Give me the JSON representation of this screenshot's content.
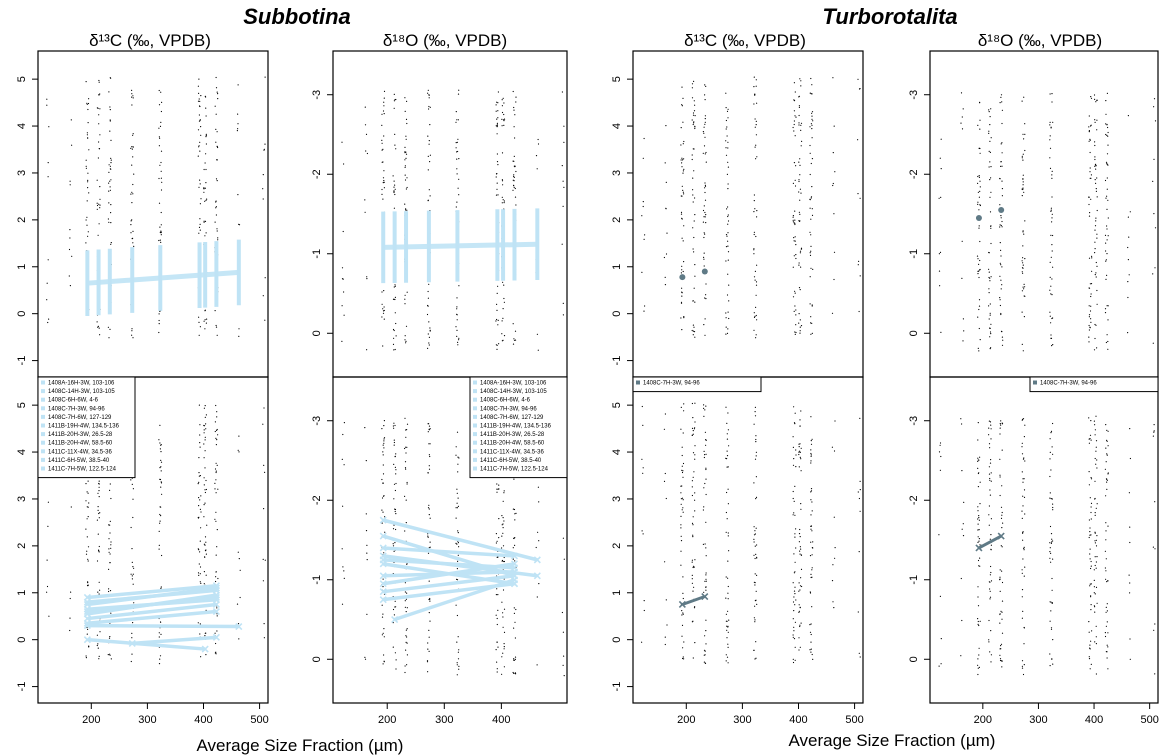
{
  "headers": {
    "genus_left": "Subbotina",
    "genus_right": "Turborotalita",
    "col1": "δ¹³C (‰, VPDB)",
    "col2": "δ¹⁸O (‰, VPDB)",
    "col3": "δ¹³C (‰, VPDB)",
    "col4": "δ¹⁸O (‰, VPDB)",
    "xlabel_left": "Average Size Fraction (µm)",
    "xlabel_right": "Average Size Fraction (µm)"
  },
  "colors": {
    "background_points": "#000000",
    "subbotina_series": "#bfe3f5",
    "turborotalita_series": "#5f7a86"
  },
  "chart_data": [
    {
      "id": "subbotina-d13c",
      "type": "scatter",
      "title": "δ¹³C (‰, VPDB)",
      "xlabel": "Average Size Fraction (µm)",
      "ylabel": "",
      "xlim": [
        105,
        515
      ],
      "ylim": [
        -1.35,
        5.6
      ],
      "x_ticks": [
        200,
        300,
        400,
        500
      ],
      "y_ticks": [
        -1,
        0,
        1,
        2,
        3,
        4,
        5
      ],
      "y_reversed": false,
      "legend_location": "bottom panel, top-left",
      "legend": [
        "1408A-16H-3W, 103-106",
        "1408C-14H-3W, 103-105",
        "1408C-6H-6W, 4-6",
        "1408C-7H-3W, 94-96",
        "1408C-7H-6W, 127-129",
        "1411B-19H-4W, 134.5-136",
        "1411B-20H-3W, 26.5-28",
        "1411B-20H-4W, 58.5-60",
        "1411C-11X-4W, 34.5-36",
        "1411C-6H-5W, 38.5-40",
        "1411C-7H-5W, 122.5-124"
      ],
      "top_panel_fit": {
        "x": [
          193,
          463
        ],
        "y": [
          0.65,
          0.88
        ]
      },
      "series": [
        {
          "name": "1408A-16H-3W, 103-106",
          "x": [
            193,
            463
          ],
          "y": [
            0.3,
            0.28
          ]
        },
        {
          "name": "1408C-14H-3W, 103-105",
          "x": [
            193,
            423
          ],
          "y": [
            0.75,
            1.1
          ]
        },
        {
          "name": "1408C-6H-6W, 4-6",
          "x": [
            193,
            423
          ],
          "y": [
            0.55,
            0.95
          ]
        },
        {
          "name": "1408C-7H-3W, 94-96",
          "x": [
            193,
            423
          ],
          "y": [
            0.8,
            1.05
          ]
        },
        {
          "name": "1408C-7H-6W, 127-129",
          "x": [
            193,
            423
          ],
          "y": [
            0.65,
            0.85
          ]
        },
        {
          "name": "1411B-19H-4W, 134.5-136",
          "x": [
            193,
            423
          ],
          "y": [
            0.45,
            0.75
          ]
        },
        {
          "name": "1411B-20H-3W, 26.5-28",
          "x": [
            193,
            423
          ],
          "y": [
            0.9,
            1.15
          ]
        },
        {
          "name": "1411B-20H-4W, 58.5-60",
          "x": [
            193,
            403
          ],
          "y": [
            0.0,
            -0.2
          ]
        },
        {
          "name": "1411C-11X-4W, 34.5-36",
          "x": [
            193,
            423
          ],
          "y": [
            0.6,
            0.9
          ]
        },
        {
          "name": "1411C-6H-5W, 38.5-40",
          "x": [
            273,
            423
          ],
          "y": [
            -0.08,
            0.05
          ]
        },
        {
          "name": "1411C-7H-5W, 122.5-124",
          "x": [
            193,
            423
          ],
          "y": [
            0.35,
            0.6
          ]
        }
      ]
    },
    {
      "id": "subbotina-d18o",
      "type": "scatter",
      "title": "δ¹⁸O (‰, VPDB)",
      "xlabel": "Average Size Fraction (µm)",
      "ylabel": "",
      "xlim": [
        105,
        515
      ],
      "ylim": [
        0.55,
        -3.55
      ],
      "x_ticks": [
        200,
        300,
        400
      ],
      "y_ticks": [
        -3,
        -2,
        -1,
        0
      ],
      "y_reversed": true,
      "legend_location": "bottom panel, top-right",
      "legend": [
        "1408A-16H-3W, 103-106",
        "1408C-14H-3W, 103-105",
        "1408C-6H-6W, 4-6",
        "1408C-7H-3W, 94-96",
        "1408C-7H-6W, 127-129",
        "1411B-19H-4W, 134.5-136",
        "1411B-20H-3W, 26.5-28",
        "1411B-20H-4W, 58.5-60",
        "1411C-11X-4W, 34.5-36",
        "1411C-6H-5W, 38.5-40",
        "1411C-7H-5W, 122.5-124"
      ],
      "top_panel_fit": {
        "x": [
          193,
          463
        ],
        "y": [
          -1.08,
          -1.12
        ]
      },
      "series": [
        {
          "name": "1408A-16H-3W, 103-106",
          "x": [
            193,
            463
          ],
          "y": [
            -1.75,
            -1.25
          ]
        },
        {
          "name": "1408C-14H-3W, 103-105",
          "x": [
            193,
            423
          ],
          "y": [
            -1.55,
            -1.05
          ]
        },
        {
          "name": "1408C-6H-6W, 4-6",
          "x": [
            193,
            423
          ],
          "y": [
            -1.2,
            -0.95
          ]
        },
        {
          "name": "1408C-7H-3W, 94-96",
          "x": [
            193,
            423
          ],
          "y": [
            -1.05,
            -1.1
          ]
        },
        {
          "name": "1408C-7H-6W, 127-129",
          "x": [
            193,
            423
          ],
          "y": [
            -0.85,
            -1.05
          ]
        },
        {
          "name": "1411B-19H-4W, 134.5-136",
          "x": [
            213,
            423
          ],
          "y": [
            -0.5,
            -1.0
          ]
        },
        {
          "name": "1411B-20H-3W, 26.5-28",
          "x": [
            193,
            423
          ],
          "y": [
            -1.25,
            -1.15
          ]
        },
        {
          "name": "1411B-20H-4W, 58.5-60",
          "x": [
            193,
            423
          ],
          "y": [
            -1.4,
            -1.3
          ]
        },
        {
          "name": "1411C-11X-4W, 34.5-36",
          "x": [
            193,
            423
          ],
          "y": [
            -0.95,
            -1.2
          ]
        },
        {
          "name": "1411C-6H-5W, 38.5-40",
          "x": [
            193,
            423
          ],
          "y": [
            -0.75,
            -0.95
          ]
        },
        {
          "name": "1411C-7H-5W, 122.5-124",
          "x": [
            193,
            463
          ],
          "y": [
            -1.3,
            -1.05
          ]
        }
      ]
    },
    {
      "id": "turborotalita-d13c",
      "type": "scatter",
      "title": "δ¹³C (‰, VPDB)",
      "xlabel": "Average Size Fraction (µm)",
      "ylabel": "",
      "xlim": [
        105,
        515
      ],
      "ylim": [
        -1.35,
        5.6
      ],
      "x_ticks": [
        100,
        200,
        300,
        400,
        500
      ],
      "y_ticks": [
        -1,
        0,
        1,
        2,
        3,
        4,
        5
      ],
      "y_reversed": false,
      "legend_location": "bottom panel, top-left",
      "legend": [
        "1408C-7H-3W, 94-96"
      ],
      "top_panel_points": {
        "x": [
          193,
          233
        ],
        "y": [
          0.78,
          0.9
        ]
      },
      "series": [
        {
          "name": "1408C-7H-3W, 94-96",
          "x": [
            193,
            233
          ],
          "y": [
            0.75,
            0.92
          ]
        }
      ]
    },
    {
      "id": "turborotalita-d18o",
      "type": "scatter",
      "title": "δ¹⁸O (‰, VPDB)",
      "xlabel": "Average Size Fraction (µm)",
      "ylabel": "",
      "xlim": [
        105,
        515
      ],
      "ylim": [
        0.55,
        -3.55
      ],
      "x_ticks": [
        200,
        300,
        400,
        500
      ],
      "y_ticks": [
        -3,
        -2,
        -1,
        0
      ],
      "y_reversed": true,
      "legend_location": "bottom panel, top-right",
      "legend": [
        "1408C-7H-3W, 94-96"
      ],
      "top_panel_points": {
        "x": [
          193,
          233
        ],
        "y": [
          -1.45,
          -1.55
        ]
      },
      "series": [
        {
          "name": "1408C-7H-3W, 94-96",
          "x": [
            193,
            233
          ],
          "y": [
            -1.4,
            -1.55
          ]
        }
      ]
    }
  ]
}
